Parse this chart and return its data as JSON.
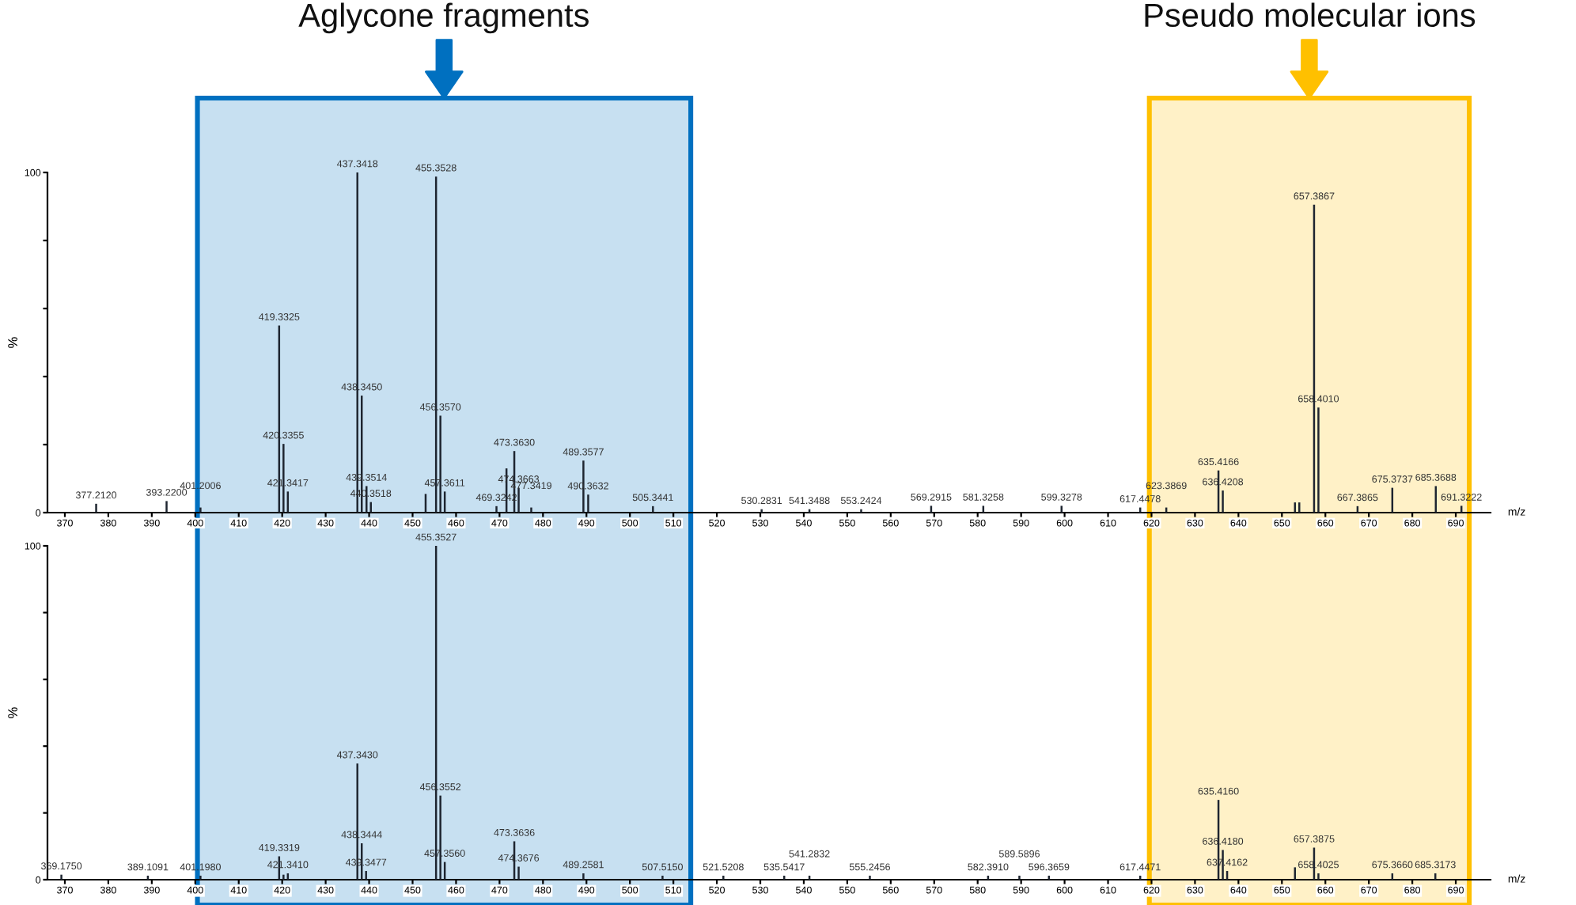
{
  "chart_data": [
    {
      "type": "bar",
      "xlabel": "m/z",
      "ylabel": "%",
      "xlim": [
        366,
        698
      ],
      "ylim": [
        0,
        100
      ],
      "xticks": [
        370,
        380,
        390,
        400,
        410,
        420,
        430,
        440,
        450,
        460,
        470,
        480,
        490,
        500,
        510,
        520,
        530,
        540,
        550,
        560,
        570,
        580,
        590,
        600,
        610,
        620,
        630,
        640,
        650,
        660,
        670,
        680,
        690
      ],
      "yticks": [
        0,
        {
          "value": 20,
          "label": null
        },
        {
          "value": 40,
          "label": null
        },
        {
          "value": 60,
          "label": null
        },
        {
          "value": 80,
          "label": null
        },
        100
      ],
      "bands": [
        {
          "axis": "x",
          "from": 400.5,
          "to": 514.0,
          "label": "Aglycone fragments",
          "color": "#0070c0"
        },
        {
          "axis": "x",
          "from": 619.5,
          "to": 693.1,
          "label": "Pseudo molecular ions",
          "color": "#ffc000"
        }
      ],
      "series": [
        {
          "color": "#1e2530",
          "x": [
            377.2,
            393.4,
            401.2,
            419.3,
            420.3,
            421.3,
            437.3,
            438.3,
            439.4,
            440.4,
            453.0,
            455.4,
            456.4,
            457.4,
            469.3,
            471.6,
            473.4,
            474.4,
            477.3,
            489.3,
            490.4,
            505.3,
            530.3,
            541.3,
            553.2,
            569.3,
            581.3,
            599.3,
            617.4,
            623.4,
            635.4,
            636.4,
            653.0,
            654.0,
            657.4,
            658.4,
            667.4,
            675.4,
            685.4,
            691.3
          ],
          "values": [
            2.6,
            3.4,
            1.5,
            55.0,
            20.2,
            6.2,
            100,
            34.4,
            7.8,
            3.1,
            5.5,
            98.8,
            28.5,
            6.2,
            1.9,
            13.0,
            18.1,
            7.3,
            1.5,
            15.3,
            5.3,
            1.9,
            1.0,
            1.0,
            1.0,
            2.0,
            2.0,
            2.0,
            1.5,
            1.5,
            12.4,
            6.5,
            3.0,
            3.0,
            90.5,
            30.9,
            1.9,
            7.3,
            7.8,
            2.0
          ]
        }
      ],
      "annotations": [
        {
          "text": "377.2120",
          "x": 377.2,
          "y": 2.6
        },
        {
          "text": "393.2200",
          "x": 393.4,
          "y": 3.4
        },
        {
          "text": "401.2006",
          "x": 401.2,
          "y": 1.5
        },
        {
          "text": "419.3325",
          "x": 419.3,
          "y": 55.0
        },
        {
          "text": "420.3355",
          "x": 420.3,
          "y": 20.2
        },
        {
          "text": "421.3417",
          "x": 421.3,
          "y": 6.2
        },
        {
          "text": "437.3418",
          "x": 437.3,
          "y": 100
        },
        {
          "text": "438.3450",
          "x": 438.3,
          "y": 34.4
        },
        {
          "text": "439.3514",
          "x": 439.4,
          "y": 7.8
        },
        {
          "text": "440.3518",
          "x": 440.4,
          "y": 3.1
        },
        {
          "text": "455.3528",
          "x": 455.4,
          "y": 98.8
        },
        {
          "text": "456.3570",
          "x": 456.4,
          "y": 28.5
        },
        {
          "text": "457.3611",
          "x": 457.4,
          "y": 6.2
        },
        {
          "text": "469.3242",
          "x": 469.3,
          "y": 1.9
        },
        {
          "text": "473.3630",
          "x": 473.4,
          "y": 18.1
        },
        {
          "text": "474.3663",
          "x": 474.4,
          "y": 7.3
        },
        {
          "text": "477.3419",
          "x": 477.3,
          "y": 1.5
        },
        {
          "text": "489.3577",
          "x": 489.3,
          "y": 15.3
        },
        {
          "text": "490.3632",
          "x": 490.4,
          "y": 5.3
        },
        {
          "text": "505.3441",
          "x": 505.3,
          "y": 1.9
        },
        {
          "text": "530.2831",
          "x": 530.3,
          "y": 1.0
        },
        {
          "text": "541.3488",
          "x": 541.3,
          "y": 1.0
        },
        {
          "text": "553.2424",
          "x": 553.2,
          "y": 1.0
        },
        {
          "text": "569.2915",
          "x": 569.3,
          "y": 2.0
        },
        {
          "text": "581.3258",
          "x": 581.3,
          "y": 2.0
        },
        {
          "text": "599.3278",
          "x": 599.3,
          "y": 2.0
        },
        {
          "text": "617.4478",
          "x": 617.4,
          "y": 1.5
        },
        {
          "text": "623.3869",
          "x": 623.4,
          "y": 1.5
        },
        {
          "text": "635.4166",
          "x": 635.4,
          "y": 12.4
        },
        {
          "text": "636.4208",
          "x": 636.4,
          "y": 6.5
        },
        {
          "text": "657.3867",
          "x": 657.4,
          "y": 90.5
        },
        {
          "text": "658.4010",
          "x": 658.4,
          "y": 30.9
        },
        {
          "text": "667.3865",
          "x": 667.4,
          "y": 1.9
        },
        {
          "text": "675.3737",
          "x": 675.4,
          "y": 7.3
        },
        {
          "text": "685.3688",
          "x": 685.4,
          "y": 7.8
        },
        {
          "text": "691.3222",
          "x": 691.3,
          "y": 2.0
        }
      ]
    },
    {
      "type": "bar",
      "xlabel": "m/z",
      "ylabel": "%",
      "xlim": [
        366,
        698
      ],
      "ylim": [
        0,
        100
      ],
      "xticks": [
        370,
        380,
        390,
        400,
        410,
        420,
        430,
        440,
        450,
        460,
        470,
        480,
        490,
        500,
        510,
        520,
        530,
        540,
        550,
        560,
        570,
        580,
        590,
        600,
        610,
        620,
        630,
        640,
        650,
        660,
        670,
        680,
        690
      ],
      "yticks": [
        0,
        {
          "value": 20,
          "label": null
        },
        {
          "value": 40,
          "label": null
        },
        {
          "value": 60,
          "label": null
        },
        {
          "value": 80,
          "label": null
        },
        100
      ],
      "bands": [
        {
          "axis": "x",
          "from": 400.5,
          "to": 514.0,
          "color": "#0070c0"
        },
        {
          "axis": "x",
          "from": 619.5,
          "to": 693.1,
          "color": "#ffc000"
        }
      ],
      "series": [
        {
          "color": "#1e2530",
          "x": [
            369.2,
            389.1,
            401.2,
            419.3,
            420.3,
            421.3,
            437.3,
            438.3,
            439.3,
            455.4,
            456.4,
            457.4,
            473.4,
            474.4,
            489.3,
            507.5,
            521.5,
            535.5,
            541.3,
            555.2,
            582.4,
            589.6,
            596.4,
            617.4,
            635.4,
            636.4,
            637.4,
            653.0,
            657.4,
            658.4,
            675.4,
            685.3
          ],
          "values": [
            1.5,
            1.2,
            1.2,
            7.0,
            1.5,
            1.9,
            34.8,
            10.9,
            2.6,
            100,
            25.2,
            5.3,
            11.5,
            3.9,
            1.9,
            1.2,
            1.2,
            1.2,
            1.2,
            1.2,
            1.2,
            1.2,
            1.2,
            1.2,
            23.9,
            8.9,
            2.6,
            3.7,
            9.6,
            1.9,
            1.9,
            1.9
          ]
        }
      ],
      "annotations": [
        {
          "text": "369.1750",
          "x": 369.2,
          "y": 1.5
        },
        {
          "text": "389.1091",
          "x": 389.1,
          "y": 1.2
        },
        {
          "text": "401.1980",
          "x": 401.2,
          "y": 1.2
        },
        {
          "text": "419.3319",
          "x": 419.3,
          "y": 7.0
        },
        {
          "text": "421.3410",
          "x": 421.3,
          "y": 1.9
        },
        {
          "text": "437.3430",
          "x": 437.3,
          "y": 34.8
        },
        {
          "text": "438.3444",
          "x": 438.3,
          "y": 10.9
        },
        {
          "text": "439.3477",
          "x": 439.3,
          "y": 2.6
        },
        {
          "text": "455.3527",
          "x": 455.4,
          "y": 100
        },
        {
          "text": "456.3552",
          "x": 456.4,
          "y": 25.2
        },
        {
          "text": "457.3560",
          "x": 457.4,
          "y": 5.3
        },
        {
          "text": "473.3636",
          "x": 473.4,
          "y": 11.5
        },
        {
          "text": "474.3676",
          "x": 474.4,
          "y": 3.9
        },
        {
          "text": "489.2581",
          "x": 489.3,
          "y": 1.9
        },
        {
          "text": "507.5150",
          "x": 507.5,
          "y": 1.2
        },
        {
          "text": "521.5208",
          "x": 521.5,
          "y": 1.2
        },
        {
          "text": "535.5417",
          "x": 535.5,
          "y": 1.2
        },
        {
          "text": "541.2832",
          "x": 541.3,
          "y": 1.2
        },
        {
          "text": "555.2456",
          "x": 555.2,
          "y": 1.2
        },
        {
          "text": "582.3910",
          "x": 582.4,
          "y": 1.2
        },
        {
          "text": "589.5896",
          "x": 589.6,
          "y": 1.2
        },
        {
          "text": "596.3659",
          "x": 596.4,
          "y": 1.2
        },
        {
          "text": "617.4471",
          "x": 617.4,
          "y": 1.2
        },
        {
          "text": "635.4160",
          "x": 635.4,
          "y": 23.9
        },
        {
          "text": "636.4180",
          "x": 636.4,
          "y": 8.9
        },
        {
          "text": "637.4162",
          "x": 637.4,
          "y": 2.6
        },
        {
          "text": "657.3875",
          "x": 657.4,
          "y": 9.6
        },
        {
          "text": "658.4025",
          "x": 658.4,
          "y": 1.9
        },
        {
          "text": "675.3660",
          "x": 675.4,
          "y": 1.9
        },
        {
          "text": "685.3173",
          "x": 685.3,
          "y": 1.9
        }
      ]
    }
  ]
}
